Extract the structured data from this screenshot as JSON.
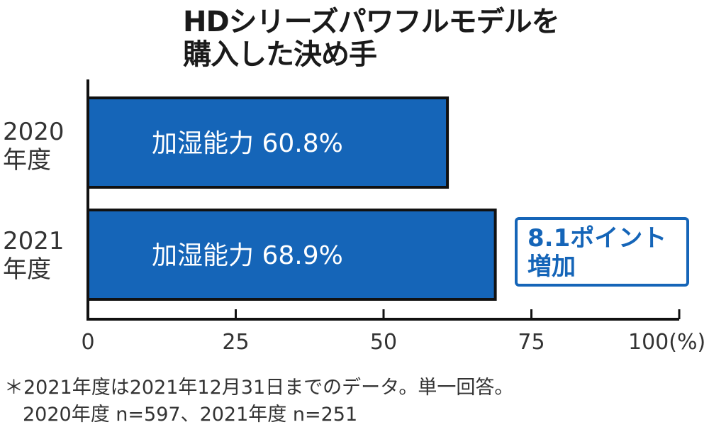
{
  "chart_data": {
    "type": "bar",
    "orientation": "horizontal",
    "title_lines": [
      "HDシリーズパワフルモデルを",
      "購入した決め手"
    ],
    "categories": [
      {
        "lines": [
          "2020",
          "年度"
        ]
      },
      {
        "lines": [
          "2021",
          "年度"
        ]
      }
    ],
    "values": [
      60.8,
      68.9
    ],
    "bar_labels": [
      "加湿能力 60.8%",
      "加湿能力 68.9%"
    ],
    "x_ticks": [
      "0",
      "25",
      "50",
      "75",
      "100(%)"
    ],
    "x_tick_values": [
      0,
      25,
      50,
      75,
      100
    ],
    "xlim": [
      0,
      100
    ],
    "grid": false,
    "colors": {
      "bar": "#1565b8",
      "bar_edge": "#111111",
      "callout": "#1565b8"
    },
    "annotation": {
      "lines": [
        "8.1ポイント",
        "増加"
      ]
    }
  },
  "footnote": {
    "lines": [
      "＊2021年度は2021年12月31日までのデータ。単一回答。",
      "2020年度 n=597、2021年度 n=251"
    ]
  }
}
